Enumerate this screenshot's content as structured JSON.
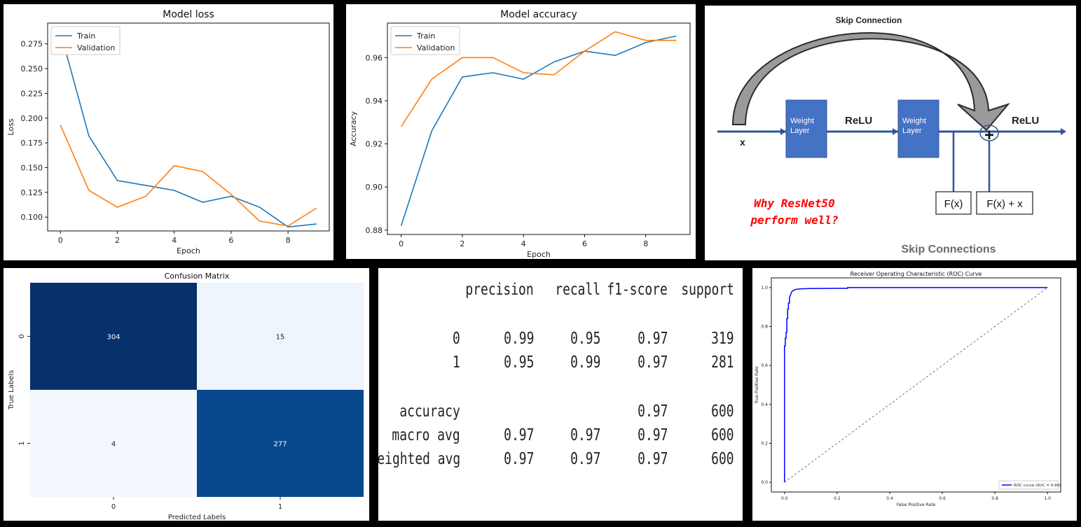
{
  "colors": {
    "train": "#1f77b4",
    "validation": "#ff7f0e",
    "cm_dark": "#08306b",
    "cm_mid": "#08488e",
    "cm_light": "#eef5fc",
    "cm_lightest": "#f3f8fe",
    "weight_box": "#4472c4",
    "arrow_line": "#2f5597",
    "roc_line": "#0000ff",
    "why_text": "#ff0000"
  },
  "chart_data": [
    {
      "type": "line",
      "title": "Model loss",
      "xlabel": "Epoch",
      "ylabel": "Loss",
      "x": [
        0,
        1,
        2,
        3,
        4,
        5,
        6,
        7,
        8,
        9
      ],
      "xticks": [
        "0",
        "2",
        "4",
        "6",
        "8"
      ],
      "yticks": [
        "0.100",
        "0.125",
        "0.150",
        "0.175",
        "0.200",
        "0.225",
        "0.250",
        "0.275"
      ],
      "ylim": [
        0.086,
        0.296
      ],
      "legend": "top-left",
      "series": [
        {
          "name": "Train",
          "color": "#1f77b4",
          "values": [
            0.287,
            0.182,
            0.137,
            0.132,
            0.127,
            0.115,
            0.121,
            0.11,
            0.09,
            0.093
          ]
        },
        {
          "name": "Validation",
          "color": "#ff7f0e",
          "values": [
            0.193,
            0.127,
            0.11,
            0.121,
            0.152,
            0.146,
            0.123,
            0.096,
            0.091,
            0.109
          ]
        }
      ]
    },
    {
      "type": "line",
      "title": "Model accuracy",
      "xlabel": "Epoch",
      "ylabel": "Accuracy",
      "x": [
        0,
        1,
        2,
        3,
        4,
        5,
        6,
        7,
        8,
        9
      ],
      "xticks": [
        "0",
        "2",
        "4",
        "6",
        "8"
      ],
      "yticks": [
        "0.88",
        "0.90",
        "0.92",
        "0.94",
        "0.96"
      ],
      "ylim": [
        0.878,
        0.976
      ],
      "legend": "top-left",
      "series": [
        {
          "name": "Train",
          "color": "#1f77b4",
          "values": [
            0.882,
            0.926,
            0.951,
            0.953,
            0.95,
            0.958,
            0.963,
            0.961,
            0.967,
            0.97
          ]
        },
        {
          "name": "Validation",
          "color": "#ff7f0e",
          "values": [
            0.928,
            0.95,
            0.96,
            0.96,
            0.953,
            0.952,
            0.963,
            0.972,
            0.968,
            0.968
          ]
        }
      ]
    },
    {
      "type": "heatmap",
      "title": "Confusion Matrix",
      "xlabel": "Predicted Labels",
      "ylabel": "True Labels",
      "x_categories": [
        "0",
        "1"
      ],
      "y_categories": [
        "0",
        "1"
      ],
      "values": [
        [
          304,
          15
        ],
        [
          4,
          277
        ]
      ]
    },
    {
      "type": "line",
      "title": "Receiver Operating Characteristic (ROC) Curve",
      "xlabel": "False Positive Rate",
      "ylabel": "True Positive Rate",
      "xlim": [
        0,
        1
      ],
      "ylim": [
        0,
        1
      ],
      "xticks": [
        "0.0",
        "0.2",
        "0.4",
        "0.6",
        "0.8",
        "1.0"
      ],
      "yticks": [
        "0.0",
        "0.2",
        "0.4",
        "0.6",
        "0.8",
        "1.0"
      ],
      "legend": "bottom-right",
      "series": [
        {
          "name": "ROC curve (AUC = 0.99)",
          "color": "#0000ff",
          "x": [
            0.0,
            0.0,
            0.003,
            0.003,
            0.006,
            0.006,
            0.009,
            0.009,
            0.012,
            0.012,
            0.015,
            0.015,
            0.019,
            0.019,
            0.022,
            0.025,
            0.028,
            0.034,
            0.041,
            0.05,
            0.07,
            0.1,
            0.2,
            0.24,
            0.24,
            0.5,
            1.0
          ],
          "y": [
            0.0,
            0.7,
            0.7,
            0.74,
            0.74,
            0.77,
            0.77,
            0.84,
            0.84,
            0.89,
            0.89,
            0.92,
            0.92,
            0.95,
            0.96,
            0.97,
            0.98,
            0.985,
            0.99,
            0.992,
            0.994,
            0.995,
            0.996,
            0.996,
            1.0,
            1.0,
            1.0
          ]
        },
        {
          "name": "",
          "color": "#555555",
          "dashed": true,
          "x": [
            0,
            1
          ],
          "y": [
            0,
            1
          ]
        }
      ]
    },
    {
      "type": "table",
      "columns": [
        "",
        "precision",
        "recall",
        "f1-score",
        "support"
      ],
      "rows": [
        [
          "0",
          "0.99",
          "0.95",
          "0.97",
          "319"
        ],
        [
          "1",
          "0.95",
          "0.99",
          "0.97",
          "281"
        ],
        [
          "accuracy",
          "",
          "",
          "0.97",
          "600"
        ],
        [
          "macro avg",
          "0.97",
          "0.97",
          "0.97",
          "600"
        ],
        [
          "weighted avg",
          "0.97",
          "0.97",
          "0.97",
          "600"
        ]
      ]
    }
  ],
  "skip_diagram": {
    "title": "Skip Connection",
    "x_label": "x",
    "box1": "Weight Layer",
    "box2": "Weight Layer",
    "relu1": "ReLU",
    "relu2": "ReLU",
    "fx": "F(x)",
    "fxx": "F(x) + x",
    "plus": "+",
    "question_line1": "Why ResNet50",
    "question_line2": "perform well?",
    "footer": "Skip Connections"
  }
}
